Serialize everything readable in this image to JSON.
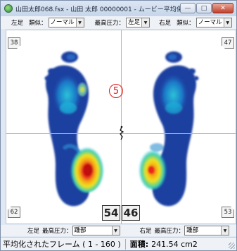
{
  "window": {
    "title": "山田太郎068.fsx - 山田 太郎 00000001 - ムービー平均化",
    "minimize_glyph": "—",
    "maximize_glyph": "□",
    "close_glyph": "✕"
  },
  "top_toolbar": {
    "left_label": "左足",
    "similar_label": "類似：",
    "left_similar_value": "ノーマル",
    "max_pressure_label": "最高圧力：",
    "max_pressure_value": "左足",
    "right_label": "右足",
    "right_similar_label": "類似：",
    "right_similar_value": "ノーマル"
  },
  "canvas": {
    "corner_top_left": "38",
    "corner_top_right": "47",
    "corner_bottom_left": "62",
    "corner_bottom_right": "53",
    "frame_number": "5",
    "left_value_box": "54",
    "right_value_box": "46",
    "colors": {
      "low": "#1a3fa0",
      "mid": "#1fb7d9",
      "high": "#f2e21a",
      "peak": "#e8261c"
    }
  },
  "bottom_toolbar": {
    "left_label": "左足",
    "left_max_label": "最高圧力：",
    "left_max_value": "踵部",
    "right_label": "右足",
    "right_max_label": "最高圧力：",
    "right_max_value": "踵部"
  },
  "status": {
    "frames_text": "平均化されたフレーム ( 1 - 160 )",
    "area_label": "面積:",
    "area_value": "241.54 cm2"
  }
}
